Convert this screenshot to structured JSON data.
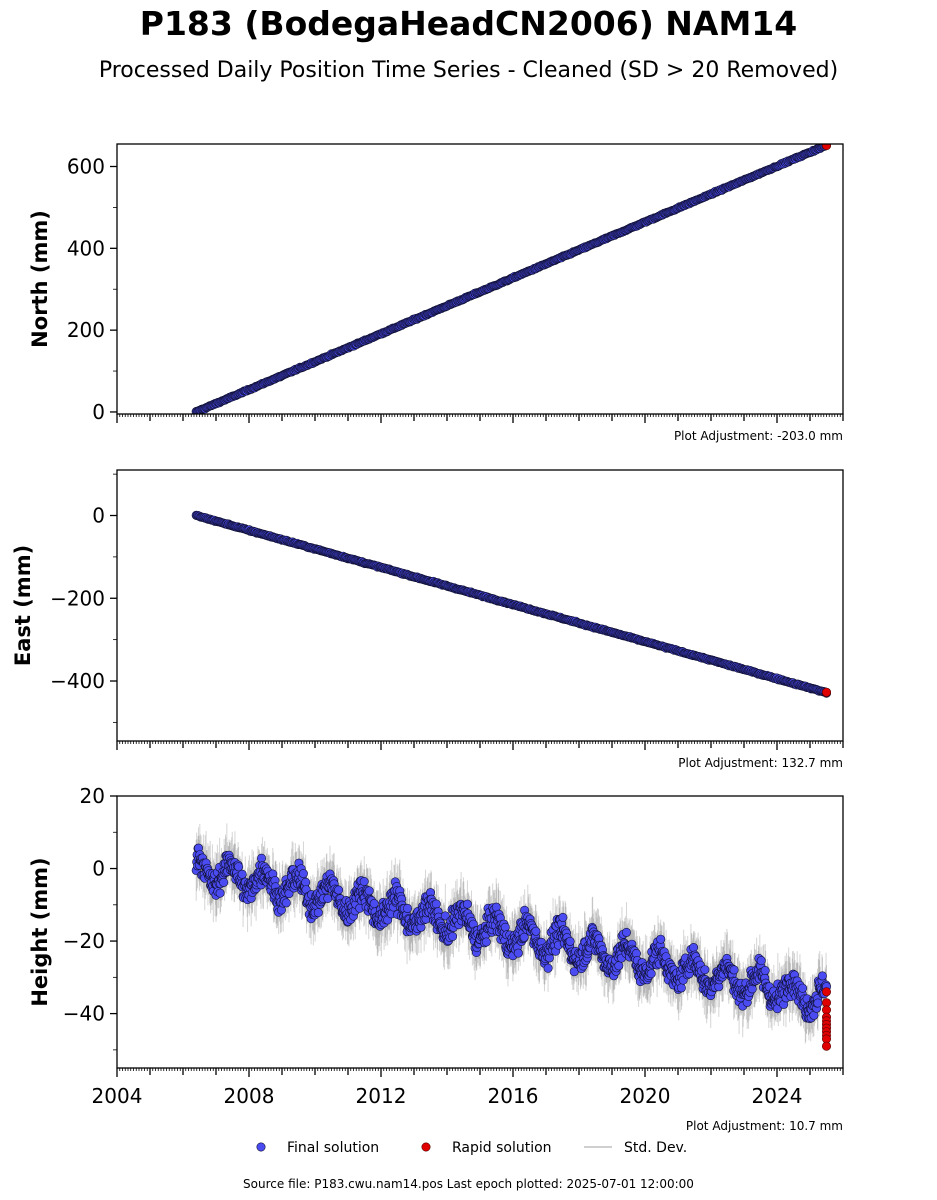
{
  "title": "P183 (BodegaHeadCN2006) NAM14",
  "subtitle": "Processed Daily Position Time Series - Cleaned (SD > 20 Removed)",
  "source_text": "Source file: P183.cwu.nam14.pos  Last epoch plotted: 2025-07-01 12:00:00",
  "colors": {
    "final": "#4b4bf2",
    "rapid": "#e00000",
    "stddev": "#888888",
    "edge": "#111133"
  },
  "legend": [
    {
      "label": "Final solution",
      "kind": "final-marker"
    },
    {
      "label": "Rapid solution",
      "kind": "rapid-marker"
    },
    {
      "label": "Std. Dev.",
      "kind": "stddev-line"
    }
  ],
  "chart_data": [
    {
      "type": "scatter",
      "ylabel": "North (mm)",
      "adjustment": "Plot Adjustment: -203.0 mm",
      "xlim": [
        2004,
        2026
      ],
      "ylim": [
        -5,
        655
      ],
      "yticks": [
        "0",
        "200",
        "400",
        "600"
      ],
      "xticks": [],
      "start_year": 2006.4,
      "end_year": 2025.5,
      "trend_start": 0,
      "trend_end": 652,
      "noise_mm": 2,
      "std_band_mm": 3,
      "rapid_values": [
        652,
        651
      ]
    },
    {
      "type": "scatter",
      "ylabel": "East (mm)",
      "adjustment": "Plot Adjustment: 132.7 mm",
      "xlim": [
        2004,
        2026
      ],
      "ylim": [
        -545,
        110
      ],
      "yticks": [
        "0",
        "−200",
        "−400"
      ],
      "xticks": [],
      "start_year": 2006.4,
      "end_year": 2025.5,
      "trend_start": 0,
      "trend_end": -428,
      "noise_mm": 2,
      "std_band_mm": 3,
      "rapid_values": [
        -428,
        -427
      ]
    },
    {
      "type": "scatter",
      "ylabel": "Height (mm)",
      "adjustment": "Plot Adjustment: 10.7 mm",
      "xlim": [
        2004,
        2026
      ],
      "ylim": [
        -55,
        20
      ],
      "yticks": [
        "20",
        "0",
        "−20",
        "−40"
      ],
      "xticks": [
        "2004",
        "2008",
        "2012",
        "2016",
        "2020",
        "2024"
      ],
      "start_year": 2006.4,
      "end_year": 2025.5,
      "trend_start": 0,
      "trend_end": -36,
      "noise_mm": 4.5,
      "std_band_mm": 6,
      "rapid_values": [
        -34,
        -37,
        -39,
        -41,
        -42,
        -43,
        -44,
        -45,
        -46,
        -47,
        -49
      ]
    }
  ]
}
